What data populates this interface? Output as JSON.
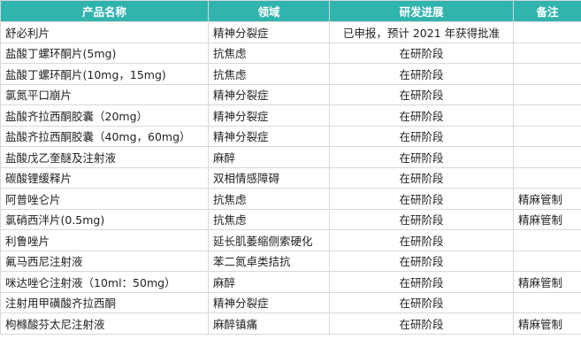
{
  "table": {
    "header": [
      "产品名称",
      "领域",
      "研发进展",
      "备注"
    ],
    "rows": [
      [
        "舒必利片",
        "精神分裂症",
        "已申报，预计 2021 年获得批准",
        null
      ],
      [
        "盐酸丁螺环酮片(5mg)",
        "抗焦虑",
        "在研阶段",
        null
      ],
      [
        "盐酸丁螺环酮片(10mg，15mg)",
        "抗焦虑",
        "在研阶段",
        null
      ],
      [
        "氯氮平口崩片",
        "精神分裂症",
        "在研阶段",
        null
      ],
      [
        "盐酸齐拉西酮胶囊（20mg）",
        "精神分裂症",
        "在研阶段",
        null
      ],
      [
        "盐酸齐拉西酮胶囊（40mg，60mg）",
        "精神分裂症",
        "在研阶段",
        null
      ],
      [
        "盐酸戊乙奎醚及注射液",
        "麻醉",
        "在研阶段",
        null
      ],
      [
        "碳酸锂缓释片",
        "双相情感障碍",
        "在研阶段",
        null
      ],
      [
        "阿普唑仑片",
        "抗焦虑",
        "在研阶段",
        "精麻管制"
      ],
      [
        "氯硝西泮片(0.5mg)",
        "抗焦虑",
        "在研阶段",
        "精麻管制"
      ],
      [
        "利鲁唑片",
        "延长肌萎缩侧索硬化",
        "在研阶段",
        null
      ],
      [
        "氟马西尼注射液",
        "苯二氮卓类拮抗",
        "在研阶段",
        null
      ],
      [
        "咪达唑仑注射液（10ml：50mg）",
        "麻醉",
        "在研阶段",
        "精麻管制"
      ],
      [
        "注射用甲磺酸齐拉西酮",
        "精神分裂症",
        "在研阶段",
        null
      ],
      [
        "枸橼酸芬太尼注射液",
        "麻醉镇痛",
        "在研阶段",
        "精麻管制"
      ]
    ]
  }
}
